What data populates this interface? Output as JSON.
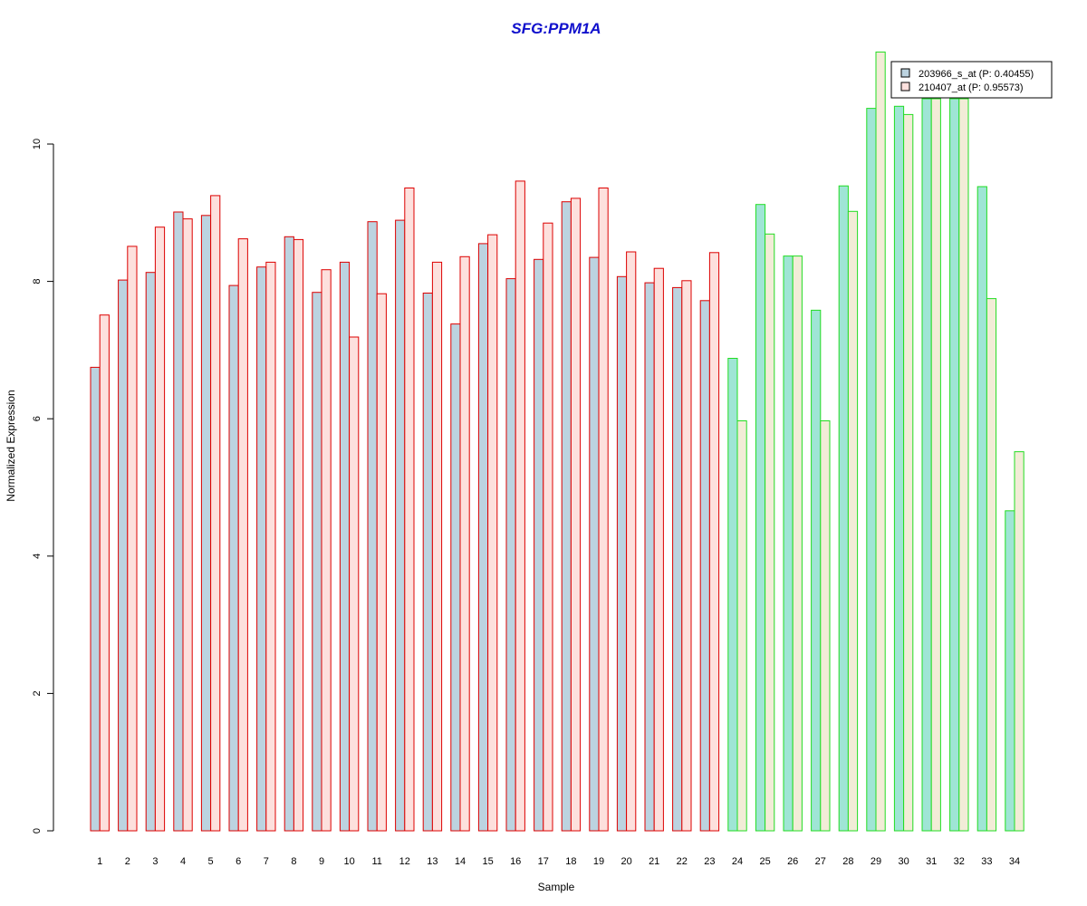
{
  "chart_data": {
    "type": "bar",
    "title": "SFG:PPM1A",
    "xlabel": "Sample",
    "ylabel": "Normalized Expression",
    "ylim": [
      0,
      11.5
    ],
    "yticks": [
      0,
      2,
      4,
      6,
      8,
      10
    ],
    "categories": [
      "1",
      "2",
      "3",
      "4",
      "5",
      "6",
      "7",
      "8",
      "9",
      "10",
      "11",
      "12",
      "13",
      "14",
      "15",
      "16",
      "17",
      "18",
      "19",
      "20",
      "21",
      "22",
      "23",
      "24",
      "25",
      "26",
      "27",
      "28",
      "29",
      "30",
      "31",
      "32",
      "33",
      "34"
    ],
    "group_a_count": 23,
    "series": [
      {
        "name": "203966_s_at (P: 0.40455)",
        "values": [
          6.75,
          8.02,
          8.13,
          9.01,
          8.96,
          7.94,
          8.21,
          8.65,
          7.84,
          8.28,
          8.87,
          8.89,
          7.83,
          7.38,
          8.55,
          8.04,
          8.32,
          9.16,
          8.35,
          8.07,
          7.98,
          7.91,
          7.72,
          6.88,
          9.12,
          8.37,
          7.58,
          9.39,
          10.52,
          10.55,
          10.66,
          10.66,
          9.38,
          4.66
        ]
      },
      {
        "name": "210407_at (P: 0.95573)",
        "values": [
          7.51,
          8.51,
          8.79,
          8.91,
          9.25,
          8.62,
          8.28,
          8.61,
          8.17,
          7.19,
          7.82,
          9.36,
          8.28,
          8.36,
          8.68,
          9.46,
          8.85,
          9.21,
          9.36,
          8.43,
          8.19,
          8.01,
          8.42,
          5.97,
          8.69,
          8.37,
          5.97,
          9.02,
          11.34,
          10.43,
          10.66,
          10.66,
          7.75,
          5.52
        ]
      }
    ],
    "colors": {
      "title": "#1010cc",
      "series_a_fill_group1": "#bcd3e0",
      "series_b_fill_group1": "#fde0dd",
      "series_a_fill_group2": "#9fe5d5",
      "series_b_fill_group2": "#f2ecd7",
      "border_group1": "#dd0000",
      "border_group2": "#22dd22",
      "legend_a": "#bcd3e0",
      "legend_b": "#fde0dd"
    },
    "legend_position": "top-right"
  }
}
